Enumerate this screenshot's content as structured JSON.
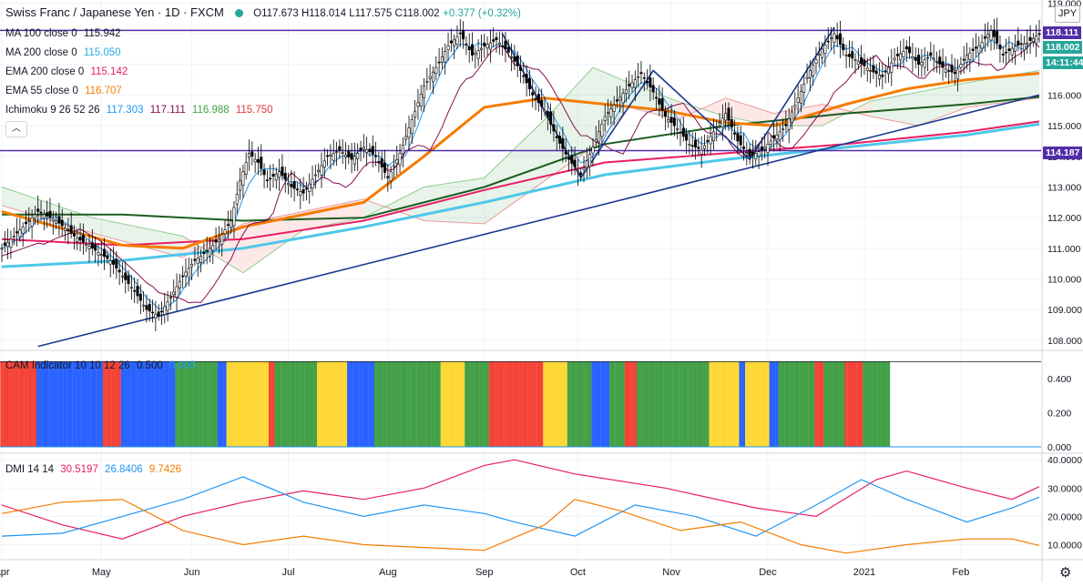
{
  "header": {
    "symbol": "Swiss Franc / Japanese Yen · 1D · FXCM",
    "ohlc": "O117.673 H118.014 L117.575 C118.002",
    "change": "+0.377 (+0.32%)",
    "currency_button": "JPY",
    "collapse_label": "︿"
  },
  "indicators": [
    {
      "label": "MA 100 close 0",
      "value": "115.942",
      "color": "#131722"
    },
    {
      "label": "MA 200 close 0",
      "value": "115.050",
      "color": "#2aa9e0"
    },
    {
      "label": "EMA 200 close 0",
      "value": "115.142",
      "color": "#e91e63"
    },
    {
      "label": "EMA 55 close 0",
      "value": "116.707",
      "color": "#f57c00"
    }
  ],
  "ichimoku": {
    "label": "Ichimoku 9 26 52 26",
    "values": [
      "117.303",
      "117.111",
      "116.988",
      "115.750"
    ],
    "colors": [
      "#2196f3",
      "#880e4f",
      "#43a047",
      "#e53935"
    ]
  },
  "cam": {
    "label": "CAM Indicator 10 10 12 26",
    "values": [
      "0.500",
      "0.000"
    ],
    "colors": [
      "#131722",
      "#2196f3"
    ]
  },
  "dmi": {
    "label": "DMI 14 14",
    "values": [
      "30.5197",
      "26.8406",
      "9.7426"
    ],
    "colors": [
      "#e91e63",
      "#2196f3",
      "#f57c00"
    ]
  },
  "price_tags": [
    {
      "text": "118.111",
      "color": "#512da8"
    },
    {
      "text": "118.002",
      "color": "#26a69a"
    },
    {
      "text": "14:11:44",
      "color": "#26a69a"
    },
    {
      "text": "114.187",
      "color": "#512da8"
    }
  ],
  "chart_data": [
    {
      "type": "candlestick",
      "title": "Swiss Franc / Japanese Yen · 1D · FXCM",
      "x_ticks": [
        "Apr",
        "May",
        "Jun",
        "Jul",
        "Aug",
        "Sep",
        "Oct",
        "Nov",
        "Dec",
        "2021",
        "Feb"
      ],
      "y_ticks": [
        "108.000",
        "109.000",
        "110.000",
        "111.000",
        "112.000",
        "113.000",
        "114.000",
        "115.000",
        "116.000",
        "117.000",
        "118.000",
        "119.000"
      ],
      "ylim": [
        107.7,
        119.1
      ],
      "horizontal_lines": [
        118.111,
        114.187
      ],
      "price_path": [
        [
          0,
          111.0
        ],
        [
          6,
          111.6
        ],
        [
          12,
          112.2
        ],
        [
          18,
          111.9
        ],
        [
          24,
          111.4
        ],
        [
          30,
          111.0
        ],
        [
          36,
          110.6
        ],
        [
          40,
          110.1
        ],
        [
          44,
          109.6
        ],
        [
          48,
          109.0
        ],
        [
          52,
          108.8
        ],
        [
          56,
          109.4
        ],
        [
          60,
          110.1
        ],
        [
          64,
          110.6
        ],
        [
          68,
          110.9
        ],
        [
          72,
          111.3
        ],
        [
          76,
          111.9
        ],
        [
          79,
          113.2
        ],
        [
          82,
          114.1
        ],
        [
          85,
          113.8
        ],
        [
          88,
          113.2
        ],
        [
          92,
          113.5
        ],
        [
          96,
          113.0
        ],
        [
          100,
          112.8
        ],
        [
          104,
          113.4
        ],
        [
          108,
          114.0
        ],
        [
          112,
          114.2
        ],
        [
          116,
          113.9
        ],
        [
          120,
          114.3
        ],
        [
          124,
          114.0
        ],
        [
          128,
          113.3
        ],
        [
          132,
          114.1
        ],
        [
          136,
          115.2
        ],
        [
          140,
          116.3
        ],
        [
          144,
          116.9
        ],
        [
          148,
          117.6
        ],
        [
          152,
          118.0
        ],
        [
          156,
          117.3
        ],
        [
          160,
          117.6
        ],
        [
          164,
          117.8
        ],
        [
          168,
          117.4
        ],
        [
          172,
          116.8
        ],
        [
          176,
          116.0
        ],
        [
          180,
          115.5
        ],
        [
          184,
          114.6
        ],
        [
          188,
          113.9
        ],
        [
          192,
          113.4
        ],
        [
          196,
          114.3
        ],
        [
          200,
          115.3
        ],
        [
          204,
          115.8
        ],
        [
          208,
          116.3
        ],
        [
          212,
          116.7
        ],
        [
          216,
          116.1
        ],
        [
          220,
          115.3
        ],
        [
          224,
          114.9
        ],
        [
          228,
          114.4
        ],
        [
          232,
          114.2
        ],
        [
          236,
          114.8
        ],
        [
          240,
          115.4
        ],
        [
          244,
          114.5
        ],
        [
          248,
          114.0
        ],
        [
          252,
          114.2
        ],
        [
          256,
          114.6
        ],
        [
          260,
          115.0
        ],
        [
          264,
          115.9
        ],
        [
          268,
          116.8
        ],
        [
          272,
          117.5
        ],
        [
          276,
          118.0
        ],
        [
          280,
          117.3
        ],
        [
          284,
          117.1
        ],
        [
          288,
          116.8
        ],
        [
          292,
          116.6
        ],
        [
          296,
          117.2
        ],
        [
          300,
          117.5
        ],
        [
          304,
          117.0
        ],
        [
          308,
          117.3
        ],
        [
          312,
          116.9
        ],
        [
          316,
          116.7
        ],
        [
          320,
          117.3
        ],
        [
          324,
          117.6
        ],
        [
          328,
          118.1
        ],
        [
          332,
          117.3
        ],
        [
          336,
          117.6
        ],
        [
          340,
          117.7
        ],
        [
          344,
          118.0
        ]
      ],
      "ma100": [
        [
          0,
          112.1
        ],
        [
          40,
          112.1
        ],
        [
          80,
          111.9
        ],
        [
          120,
          112.0
        ],
        [
          160,
          113.0
        ],
        [
          200,
          114.4
        ],
        [
          240,
          115.0
        ],
        [
          280,
          115.4
        ],
        [
          320,
          115.7
        ],
        [
          344,
          115.94
        ]
      ],
      "ma200": [
        [
          0,
          110.4
        ],
        [
          40,
          110.6
        ],
        [
          80,
          111.0
        ],
        [
          120,
          111.7
        ],
        [
          160,
          112.5
        ],
        [
          200,
          113.4
        ],
        [
          240,
          113.9
        ],
        [
          280,
          114.3
        ],
        [
          320,
          114.7
        ],
        [
          344,
          115.05
        ]
      ],
      "ema200": [
        [
          0,
          111.3
        ],
        [
          40,
          111.1
        ],
        [
          80,
          111.3
        ],
        [
          120,
          111.9
        ],
        [
          160,
          112.9
        ],
        [
          200,
          113.8
        ],
        [
          240,
          114.1
        ],
        [
          280,
          114.4
        ],
        [
          320,
          114.8
        ],
        [
          344,
          115.14
        ]
      ],
      "ema55": [
        [
          0,
          112.2
        ],
        [
          40,
          111.1
        ],
        [
          60,
          111.0
        ],
        [
          80,
          111.7
        ],
        [
          120,
          112.5
        ],
        [
          140,
          114.0
        ],
        [
          160,
          115.6
        ],
        [
          180,
          115.9
        ],
        [
          200,
          115.7
        ],
        [
          220,
          115.5
        ],
        [
          240,
          115.1
        ],
        [
          256,
          115.0
        ],
        [
          280,
          115.7
        ],
        [
          300,
          116.2
        ],
        [
          320,
          116.5
        ],
        [
          344,
          116.71
        ]
      ],
      "trendlines": [
        [
          [
            12,
            107.8
          ],
          [
            344,
            116.0
          ]
        ],
        [
          [
            166,
            118.0
          ],
          [
            192,
            113.3
          ],
          [
            216,
            116.8
          ],
          [
            248,
            113.9
          ],
          [
            276,
            118.2
          ]
        ]
      ],
      "cloud": [
        [
          0,
          113.0,
          112.4
        ],
        [
          30,
          112.0,
          111.5
        ],
        [
          60,
          111.4,
          110.7
        ],
        [
          80,
          110.2,
          111.8
        ],
        [
          100,
          111.6,
          112.2
        ],
        [
          120,
          112.0,
          112.6
        ],
        [
          140,
          113.0,
          111.9
        ],
        [
          160,
          113.3,
          111.8
        ],
        [
          180,
          115.2,
          113.2
        ],
        [
          196,
          116.9,
          114.3
        ],
        [
          208,
          116.4,
          115.6
        ],
        [
          224,
          115.8,
          115.2
        ],
        [
          240,
          115.3,
          115.9
        ],
        [
          256,
          115.0,
          115.4
        ],
        [
          272,
          115.0,
          115.7
        ],
        [
          288,
          115.8,
          115.3
        ],
        [
          304,
          116.1,
          115.0
        ],
        [
          320,
          116.4,
          115.6
        ],
        [
          344,
          116.8,
          115.9
        ]
      ]
    },
    {
      "type": "bar",
      "title": "CAM Indicator 10 10 12 26",
      "y_ticks": [
        "0.000",
        "0.200",
        "0.400"
      ],
      "ylim": [
        0,
        0.55
      ],
      "value": 0.5,
      "color_runs": [
        [
          "#f44336",
          12
        ],
        [
          "#2962ff",
          22
        ],
        [
          "#f44336",
          6
        ],
        [
          "#2962ff",
          18
        ],
        [
          "#43a047",
          14
        ],
        [
          "#2962ff",
          3
        ],
        [
          "#fdd835",
          14
        ],
        [
          "#f44336",
          2
        ],
        [
          "#43a047",
          14
        ],
        [
          "#fdd835",
          10
        ],
        [
          "#2962ff",
          9
        ],
        [
          "#43a047",
          22
        ],
        [
          "#fdd835",
          8
        ],
        [
          "#43a047",
          8
        ],
        [
          "#f44336",
          18
        ],
        [
          "#fdd835",
          8
        ],
        [
          "#43a047",
          8
        ],
        [
          "#2962ff",
          6
        ],
        [
          "#43a047",
          5
        ],
        [
          "#f44336",
          4
        ],
        [
          "#43a047",
          24
        ],
        [
          "#fdd835",
          10
        ],
        [
          "#2962ff",
          2
        ],
        [
          "#fdd835",
          8
        ],
        [
          "#2962ff",
          3
        ],
        [
          "#43a047",
          12
        ],
        [
          "#f44336",
          3
        ],
        [
          "#43a047",
          7
        ],
        [
          "#f44336",
          6
        ],
        [
          "#43a047",
          9
        ]
      ]
    },
    {
      "type": "line",
      "title": "DMI 14 14",
      "x_ticks": [
        "Apr",
        "May",
        "Jun",
        "Jul",
        "Aug",
        "Sep",
        "Oct",
        "Nov",
        "Dec",
        "2021",
        "Feb"
      ],
      "y_ticks": [
        "10.0000",
        "20.0000",
        "30.0000",
        "40.0000"
      ],
      "ylim": [
        5,
        42
      ],
      "series": [
        {
          "values": [
            [
              0,
              24
            ],
            [
              20,
              17
            ],
            [
              40,
              12
            ],
            [
              60,
              20
            ],
            [
              80,
              25
            ],
            [
              100,
              29
            ],
            [
              120,
              26
            ],
            [
              140,
              30
            ],
            [
              160,
              38
            ],
            [
              170,
              40
            ],
            [
              190,
              35
            ],
            [
              220,
              30
            ],
            [
              250,
              23
            ],
            [
              270,
              20
            ],
            [
              290,
              33
            ],
            [
              300,
              36
            ],
            [
              320,
              30
            ],
            [
              335,
              26
            ],
            [
              344,
              30.5
            ]
          ],
          "color": "#e91e63"
        },
        {
          "values": [
            [
              0,
              13
            ],
            [
              20,
              14
            ],
            [
              40,
              20
            ],
            [
              60,
              26
            ],
            [
              80,
              34
            ],
            [
              100,
              25
            ],
            [
              120,
              20
            ],
            [
              140,
              24
            ],
            [
              160,
              21
            ],
            [
              170,
              18
            ],
            [
              190,
              13
            ],
            [
              210,
              24
            ],
            [
              230,
              20
            ],
            [
              250,
              13
            ],
            [
              270,
              24
            ],
            [
              285,
              33
            ],
            [
              300,
              26
            ],
            [
              320,
              18
            ],
            [
              335,
              23
            ],
            [
              344,
              26.8
            ]
          ],
          "color": "#2196f3"
        },
        {
          "values": [
            [
              0,
              21
            ],
            [
              20,
              25
            ],
            [
              40,
              26
            ],
            [
              60,
              15
            ],
            [
              80,
              10
            ],
            [
              100,
              13
            ],
            [
              120,
              10
            ],
            [
              140,
              9
            ],
            [
              160,
              8
            ],
            [
              180,
              17
            ],
            [
              190,
              26
            ],
            [
              205,
              22
            ],
            [
              225,
              15
            ],
            [
              245,
              18
            ],
            [
              265,
              10
            ],
            [
              280,
              7
            ],
            [
              300,
              10
            ],
            [
              320,
              12
            ],
            [
              335,
              12
            ],
            [
              344,
              9.7
            ]
          ],
          "color": "#f57c00"
        }
      ]
    }
  ]
}
